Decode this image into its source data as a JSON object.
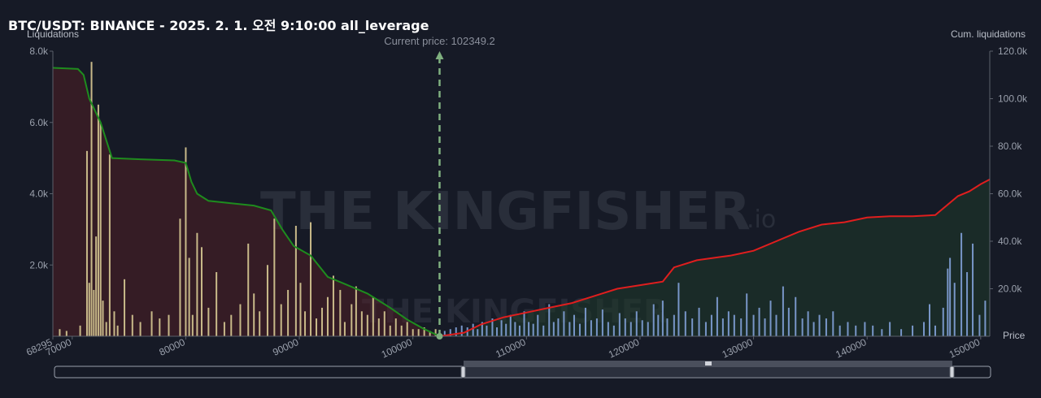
{
  "title": "BTC/USDT: BINANCE - 2025. 2. 1. 오전 9:10:00 all_leverage",
  "watermark": {
    "text": "THE KINGFISHER",
    "suffix": ".io"
  },
  "chart_data": {
    "type": "bar",
    "left_axis_label": "Liquidations",
    "right_axis_label": "Cum. liquidations",
    "price_axis_label": "Price",
    "current_price_label": "Current price: 102349.2",
    "current_price": 102349.2,
    "x_range": [
      68295,
      150800
    ],
    "left_ylim": [
      0,
      8000
    ],
    "right_ylim": [
      0,
      120000
    ],
    "x_ticks": [
      {
        "value": 68295,
        "label": "68295"
      },
      {
        "value": 70000,
        "label": "70000"
      },
      {
        "value": 80000,
        "label": "80000"
      },
      {
        "value": 90000,
        "label": "90000"
      },
      {
        "value": 100000,
        "label": "100000"
      },
      {
        "value": 110000,
        "label": "110000"
      },
      {
        "value": 120000,
        "label": "120000"
      },
      {
        "value": 130000,
        "label": "130000"
      },
      {
        "value": 140000,
        "label": "140000"
      },
      {
        "value": 150000,
        "label": "150000"
      }
    ],
    "left_ticks": [
      {
        "value": 2000,
        "label": "2.0k"
      },
      {
        "value": 4000,
        "label": "4.0k"
      },
      {
        "value": 6000,
        "label": "6.0k"
      },
      {
        "value": 8000,
        "label": "8.0k"
      }
    ],
    "right_ticks": [
      {
        "value": 20000,
        "label": "20.0k"
      },
      {
        "value": 40000,
        "label": "40.0k"
      },
      {
        "value": 60000,
        "label": "60.0k"
      },
      {
        "value": 80000,
        "label": "80.0k"
      },
      {
        "value": 100000,
        "label": "100.0k"
      },
      {
        "value": 120000,
        "label": "120.0k"
      }
    ],
    "long_liquidations": {
      "color": "#c8b989",
      "bars": [
        [
          68900,
          200
        ],
        [
          69500,
          150
        ],
        [
          70700,
          300
        ],
        [
          71300,
          5200
        ],
        [
          71500,
          1500
        ],
        [
          71700,
          7700
        ],
        [
          71900,
          1300
        ],
        [
          72100,
          2800
        ],
        [
          72300,
          6500
        ],
        [
          72500,
          6000
        ],
        [
          72700,
          1000
        ],
        [
          73000,
          400
        ],
        [
          73300,
          5100
        ],
        [
          73700,
          700
        ],
        [
          74000,
          300
        ],
        [
          74600,
          1600
        ],
        [
          75300,
          600
        ],
        [
          76000,
          400
        ],
        [
          77000,
          700
        ],
        [
          77700,
          500
        ],
        [
          78500,
          600
        ],
        [
          79500,
          3300
        ],
        [
          80000,
          5300
        ],
        [
          80300,
          2200
        ],
        [
          80600,
          600
        ],
        [
          81000,
          2900
        ],
        [
          81400,
          2500
        ],
        [
          82000,
          800
        ],
        [
          82700,
          1800
        ],
        [
          83400,
          400
        ],
        [
          84000,
          600
        ],
        [
          84800,
          900
        ],
        [
          85500,
          2600
        ],
        [
          86000,
          1200
        ],
        [
          86500,
          700
        ],
        [
          87200,
          2000
        ],
        [
          87800,
          3300
        ],
        [
          88400,
          900
        ],
        [
          89000,
          1300
        ],
        [
          89700,
          3100
        ],
        [
          90100,
          1500
        ],
        [
          90500,
          700
        ],
        [
          91000,
          3200
        ],
        [
          91500,
          500
        ],
        [
          92000,
          800
        ],
        [
          92500,
          1100
        ],
        [
          93000,
          1700
        ],
        [
          93600,
          1300
        ],
        [
          94000,
          400
        ],
        [
          94600,
          900
        ],
        [
          95000,
          1400
        ],
        [
          95500,
          700
        ],
        [
          96000,
          600
        ],
        [
          96500,
          1100
        ],
        [
          97000,
          500
        ],
        [
          97500,
          700
        ],
        [
          98000,
          300
        ],
        [
          98500,
          500
        ],
        [
          99000,
          300
        ],
        [
          99500,
          400
        ],
        [
          100000,
          200
        ],
        [
          100500,
          200
        ],
        [
          101000,
          250
        ],
        [
          101500,
          150
        ],
        [
          102000,
          200
        ]
      ]
    },
    "short_liquidations": {
      "color": "#7896c8",
      "bars": [
        [
          102800,
          150
        ],
        [
          103300,
          200
        ],
        [
          103800,
          250
        ],
        [
          104300,
          300
        ],
        [
          104800,
          250
        ],
        [
          105300,
          350
        ],
        [
          105700,
          200
        ],
        [
          106100,
          400
        ],
        [
          106500,
          300
        ],
        [
          107000,
          500
        ],
        [
          107400,
          250
        ],
        [
          107800,
          450
        ],
        [
          108200,
          350
        ],
        [
          108600,
          600
        ],
        [
          109000,
          400
        ],
        [
          109400,
          300
        ],
        [
          109800,
          700
        ],
        [
          110200,
          400
        ],
        [
          110600,
          350
        ],
        [
          111000,
          600
        ],
        [
          111500,
          300
        ],
        [
          112000,
          900
        ],
        [
          112400,
          400
        ],
        [
          112800,
          500
        ],
        [
          113300,
          700
        ],
        [
          113800,
          400
        ],
        [
          114200,
          600
        ],
        [
          114700,
          350
        ],
        [
          115200,
          800
        ],
        [
          115700,
          450
        ],
        [
          116200,
          500
        ],
        [
          116700,
          750
        ],
        [
          117200,
          400
        ],
        [
          117700,
          300
        ],
        [
          118200,
          650
        ],
        [
          118700,
          500
        ],
        [
          119200,
          400
        ],
        [
          119700,
          700
        ],
        [
          120200,
          450
        ],
        [
          120700,
          400
        ],
        [
          121200,
          900
        ],
        [
          121600,
          600
        ],
        [
          122000,
          1000
        ],
        [
          122400,
          500
        ],
        [
          123000,
          600
        ],
        [
          123400,
          1500
        ],
        [
          124000,
          700
        ],
        [
          124600,
          500
        ],
        [
          125200,
          800
        ],
        [
          125800,
          400
        ],
        [
          126300,
          600
        ],
        [
          126800,
          1100
        ],
        [
          127300,
          500
        ],
        [
          127800,
          700
        ],
        [
          128300,
          600
        ],
        [
          128900,
          500
        ],
        [
          129400,
          1200
        ],
        [
          130000,
          600
        ],
        [
          130500,
          800
        ],
        [
          131000,
          500
        ],
        [
          131500,
          1000
        ],
        [
          132000,
          600
        ],
        [
          132600,
          1400
        ],
        [
          133100,
          800
        ],
        [
          133700,
          1100
        ],
        [
          134300,
          500
        ],
        [
          134800,
          700
        ],
        [
          135300,
          400
        ],
        [
          135800,
          600
        ],
        [
          136400,
          500
        ],
        [
          137000,
          700
        ],
        [
          137600,
          300
        ],
        [
          138300,
          400
        ],
        [
          139000,
          300
        ],
        [
          139800,
          400
        ],
        [
          140500,
          300
        ],
        [
          141300,
          200
        ],
        [
          142000,
          400
        ],
        [
          143000,
          200
        ],
        [
          144000,
          300
        ],
        [
          145000,
          400
        ],
        [
          145500,
          900
        ],
        [
          146000,
          300
        ],
        [
          146700,
          800
        ],
        [
          147100,
          1900
        ],
        [
          147300,
          2200
        ],
        [
          147700,
          1500
        ],
        [
          148300,
          2900
        ],
        [
          148800,
          1800
        ],
        [
          149300,
          2600
        ],
        [
          149900,
          600
        ],
        [
          150400,
          1000
        ]
      ]
    },
    "cum_long": {
      "color": "#1e8c1e",
      "points": [
        [
          68295,
          113000
        ],
        [
          70500,
          112500
        ],
        [
          71000,
          110000
        ],
        [
          71500,
          100000
        ],
        [
          72500,
          90000
        ],
        [
          73500,
          75000
        ],
        [
          76000,
          74500
        ],
        [
          79000,
          74000
        ],
        [
          80000,
          73000
        ],
        [
          80500,
          65000
        ],
        [
          81000,
          60000
        ],
        [
          82000,
          57000
        ],
        [
          84000,
          56000
        ],
        [
          86000,
          55000
        ],
        [
          87500,
          53000
        ],
        [
          88500,
          45000
        ],
        [
          89500,
          38000
        ],
        [
          91000,
          34000
        ],
        [
          92500,
          25000
        ],
        [
          94000,
          22000
        ],
        [
          96000,
          18000
        ],
        [
          98000,
          12000
        ],
        [
          99500,
          7000
        ],
        [
          101000,
          3000
        ],
        [
          102349,
          0
        ]
      ]
    },
    "cum_short": {
      "color": "#e01e1e",
      "points": [
        [
          102349,
          0
        ],
        [
          104500,
          1500
        ],
        [
          106000,
          5000
        ],
        [
          108000,
          8000
        ],
        [
          110000,
          10000
        ],
        [
          112000,
          12000
        ],
        [
          114000,
          14000
        ],
        [
          116000,
          17000
        ],
        [
          118000,
          20000
        ],
        [
          120000,
          21500
        ],
        [
          122000,
          23000
        ],
        [
          123000,
          29000
        ],
        [
          125000,
          32000
        ],
        [
          128000,
          34000
        ],
        [
          130000,
          36000
        ],
        [
          132000,
          40000
        ],
        [
          134000,
          44000
        ],
        [
          136000,
          47000
        ],
        [
          138000,
          48000
        ],
        [
          140000,
          50000
        ],
        [
          142000,
          50500
        ],
        [
          144000,
          50500
        ],
        [
          146000,
          51000
        ],
        [
          147000,
          55000
        ],
        [
          148000,
          59000
        ],
        [
          149000,
          61000
        ],
        [
          150000,
          64000
        ],
        [
          150800,
          66000
        ]
      ]
    }
  }
}
